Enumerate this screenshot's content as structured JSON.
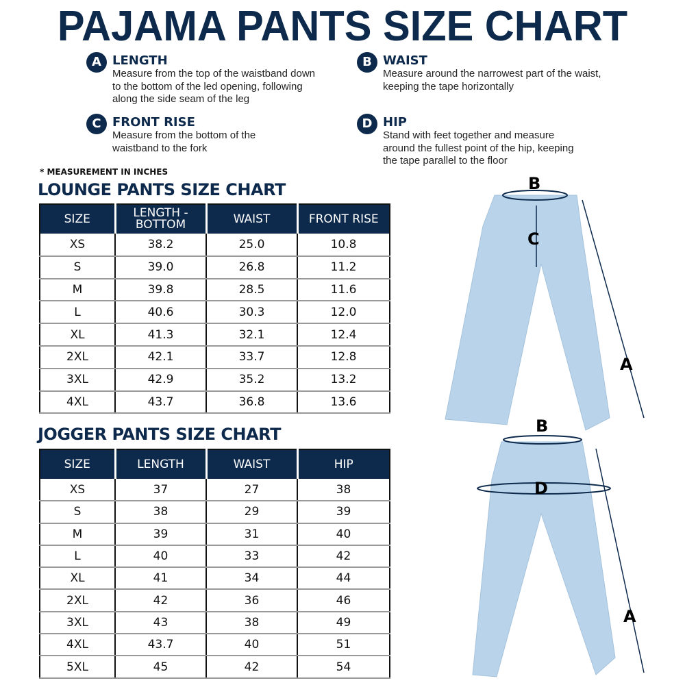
{
  "title": "PAJAMA PANTS SIZE CHART",
  "definitions": [
    {
      "letter": "A",
      "name": "LENGTH",
      "desc": "Measure from the top of the waistband down to the bottom of the led opening, following along the side seam of the leg"
    },
    {
      "letter": "B",
      "name": "WAIST",
      "desc": "Measure around the narrowest part of the waist, keeping the tape horizontally"
    },
    {
      "letter": "C",
      "name": "FRONT RISE",
      "desc": "Measure from the bottom of the waistband to the fork"
    },
    {
      "letter": "D",
      "name": "HIP",
      "desc": "Stand with feet together and measure around the fullest point of the hip, keeping the tape parallel to the floor"
    }
  ],
  "note": "* MEASUREMENT IN INCHES",
  "lounge": {
    "title": "LOUNGE PANTS SIZE CHART",
    "headers": [
      "SIZE",
      "LENGTH - BOTTOM",
      "WAIST",
      "FRONT RISE"
    ],
    "rows": [
      [
        "XS",
        "38.2",
        "25.0",
        "10.8"
      ],
      [
        "S",
        "39.0",
        "26.8",
        "11.2"
      ],
      [
        "M",
        "39.8",
        "28.5",
        "11.6"
      ],
      [
        "L",
        "40.6",
        "30.3",
        "12.0"
      ],
      [
        "XL",
        "41.3",
        "32.1",
        "12.4"
      ],
      [
        "2XL",
        "42.1",
        "33.7",
        "12.8"
      ],
      [
        "3XL",
        "42.9",
        "35.2",
        "13.2"
      ],
      [
        "4XL",
        "43.7",
        "36.8",
        "13.6"
      ]
    ]
  },
  "jogger": {
    "title": "JOGGER PANTS SIZE CHART",
    "headers": [
      "SIZE",
      "LENGTH",
      "WAIST",
      "HIP"
    ],
    "rows": [
      [
        "XS",
        "37",
        "27",
        "38"
      ],
      [
        "S",
        "38",
        "29",
        "39"
      ],
      [
        "M",
        "39",
        "31",
        "40"
      ],
      [
        "L",
        "40",
        "33",
        "42"
      ],
      [
        "XL",
        "41",
        "34",
        "44"
      ],
      [
        "2XL",
        "42",
        "36",
        "46"
      ],
      [
        "3XL",
        "43",
        "38",
        "49"
      ],
      [
        "4XL",
        "43.7",
        "40",
        "51"
      ],
      [
        "5XL",
        "45",
        "42",
        "54"
      ]
    ]
  },
  "diagram_labels": {
    "lounge": [
      "B",
      "C",
      "A"
    ],
    "jogger": [
      "B",
      "D",
      "A"
    ]
  },
  "colors": {
    "navy": "#0d2a4d",
    "pants": "#b9d4ea"
  }
}
